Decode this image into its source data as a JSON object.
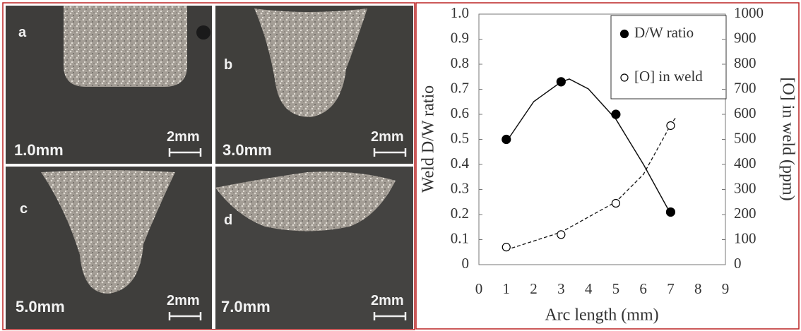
{
  "panels": [
    {
      "letter": "a",
      "arc": "1.0mm",
      "scale": "2mm"
    },
    {
      "letter": "b",
      "arc": "3.0mm",
      "scale": "2mm"
    },
    {
      "letter": "c",
      "arc": "5.0mm",
      "scale": "2mm"
    },
    {
      "letter": "d",
      "arc": "7.0mm",
      "scale": "2mm"
    }
  ],
  "chart_data": {
    "type": "scatter",
    "x_label": "Arc length (mm)",
    "y_label": "Weld D/W ratio",
    "y2_label": "[O] in weld (ppm)",
    "xlim": [
      0,
      9
    ],
    "xticks": [
      0,
      1,
      2,
      3,
      4,
      5,
      6,
      7,
      8,
      9
    ],
    "ylim": [
      0,
      1
    ],
    "yticks": [
      0,
      0.1,
      0.2,
      0.3,
      0.4,
      0.5,
      0.6,
      0.7,
      0.8,
      0.9,
      {
        "value": 1,
        "label": "1.0"
      }
    ],
    "y2lim": [
      0,
      1000
    ],
    "y2ticks": [
      0,
      100,
      200,
      300,
      400,
      500,
      600,
      700,
      800,
      900,
      1000
    ],
    "legend": "upper right",
    "series": [
      {
        "name": "D/W ratio",
        "color": "#000000",
        "marker": "filled",
        "x": [
          1,
          3,
          5,
          7
        ],
        "values": [
          0.5,
          0.73,
          0.6,
          0.21
        ]
      },
      {
        "name": "[O] in weld",
        "color": "#000000",
        "marker": "open",
        "axis": "y2",
        "x": [
          1,
          3,
          5,
          7
        ],
        "values": [
          70,
          120,
          245,
          555
        ]
      }
    ]
  }
}
